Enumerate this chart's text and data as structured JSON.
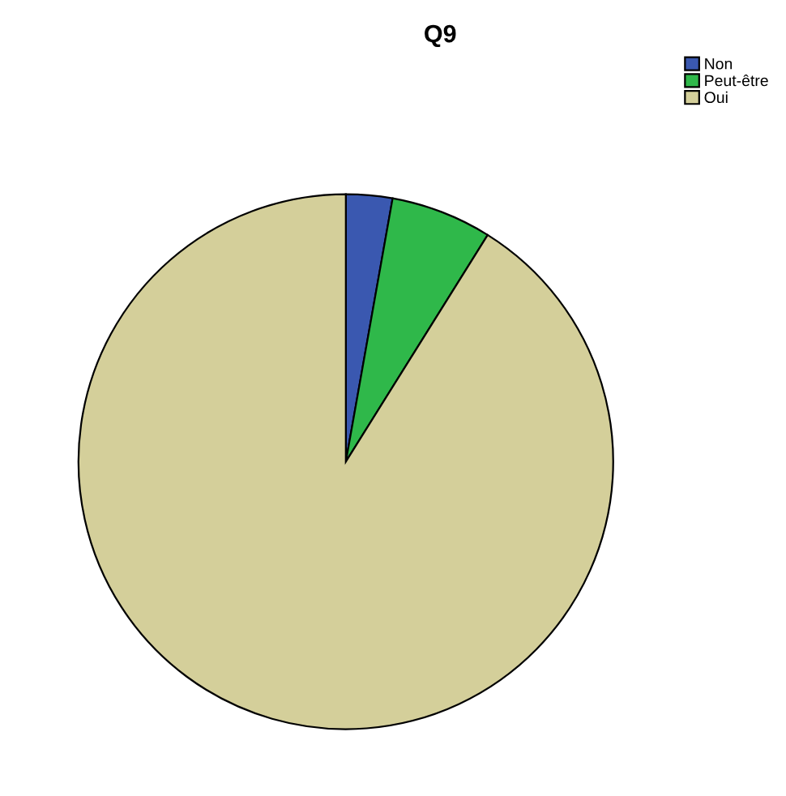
{
  "chart_data": {
    "type": "pie",
    "title": "Q9",
    "categories": [
      "Non",
      "Peut-être",
      "Oui"
    ],
    "values": [
      2.8,
      6.1,
      91.1
    ],
    "colors": [
      "#3a58b0",
      "#2fb84a",
      "#d4cf9a"
    ],
    "legend": "top right"
  }
}
